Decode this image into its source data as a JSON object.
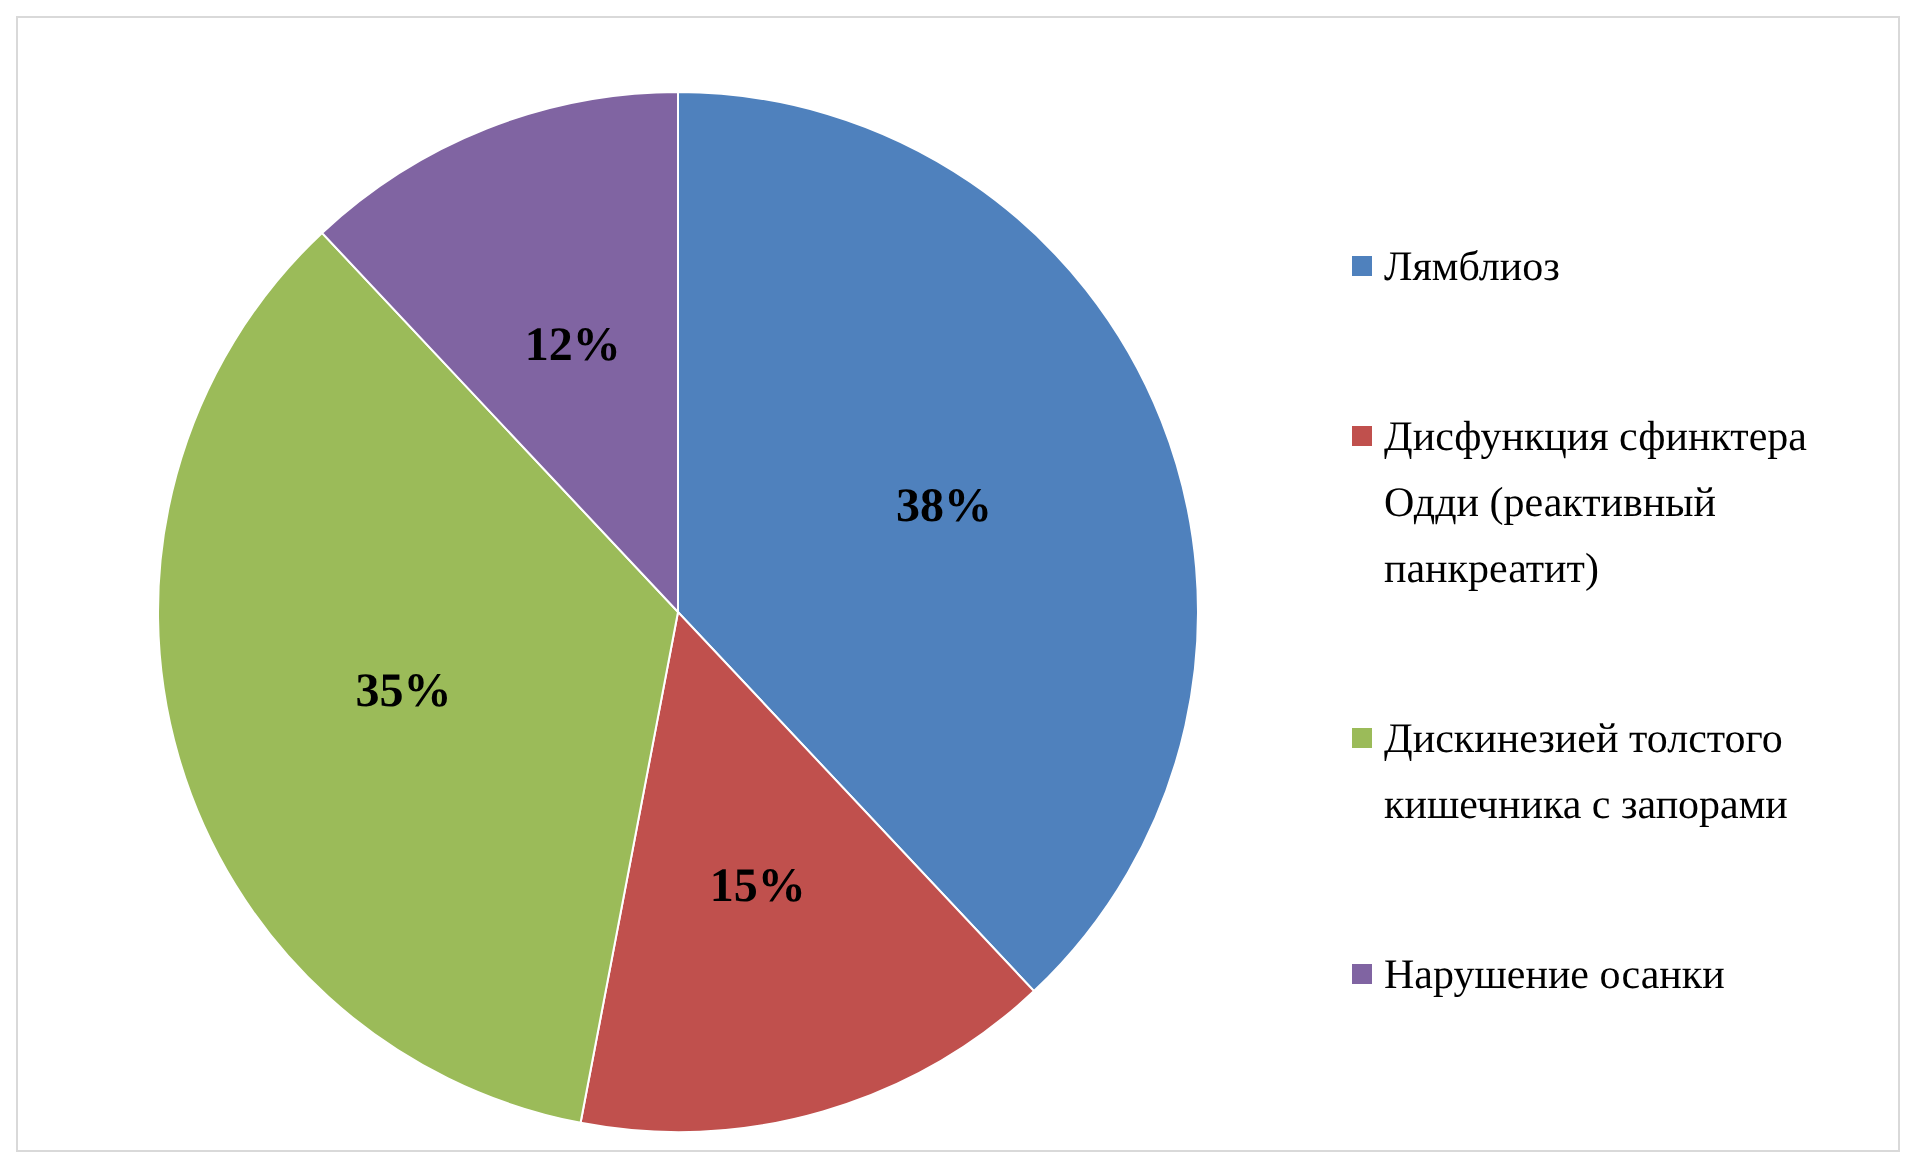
{
  "chart_data": {
    "type": "pie",
    "categories": [
      "Лямблиоз",
      "Дисфункция сфинктера Одди (реактивный панкреатит)",
      "Дискинезией толстого кишечника с запорами",
      "Нарушение осанки"
    ],
    "values": [
      38,
      15,
      35,
      12
    ],
    "colors": [
      "#4f81bd",
      "#c0504d",
      "#9bbb59",
      "#8064a2"
    ],
    "value_labels": [
      "38%",
      "15%",
      "35%",
      "12%"
    ],
    "legend": "right"
  }
}
